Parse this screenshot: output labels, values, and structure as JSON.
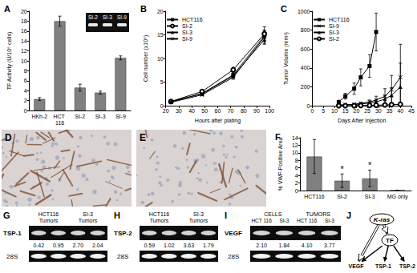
{
  "chart_data": [
    {
      "title": "A",
      "type": "bar",
      "categories": [
        "HKh-2",
        "HCT 116",
        "SI-2",
        "SI-3",
        "SI-9"
      ],
      "values": [
        2.3,
        18,
        4.6,
        3.6,
        10.6
      ],
      "errors": [
        0.3,
        1,
        0.7,
        0.3,
        0.4
      ],
      "color": "#808080",
      "ylabel": "TF Activity (U/10⁶ cells)",
      "ylim": [
        0,
        20
      ],
      "yticks": [
        0,
        2,
        4,
        6,
        8,
        10,
        12,
        14,
        16,
        18,
        20
      ],
      "grid": false,
      "inset": {
        "labels": [
          "SI-2",
          "SI-3",
          "SI-9"
        ]
      }
    },
    {
      "title": "B",
      "type": "line",
      "xlabel": "Hours after plating",
      "ylabel": "Cell number (x10⁵)",
      "x": [
        24,
        48,
        72,
        96
      ],
      "xlim": [
        20,
        100
      ],
      "xticks": [
        20,
        30,
        40,
        50,
        60,
        70,
        80,
        90,
        100
      ],
      "ylim": [
        0,
        20
      ],
      "yticks": [
        0,
        5,
        10,
        15,
        20
      ],
      "grid": false,
      "legend": "upper left",
      "series": [
        {
          "name": "HCT116",
          "color": "#000000",
          "marker": "square",
          "values": [
            0.8,
            2.6,
            6.5,
            14.8
          ],
          "errors": [
            0.1,
            0.2,
            0.4,
            1.2
          ]
        },
        {
          "name": "SI-2",
          "color": "#000000",
          "marker": "open_circle",
          "values": [
            0.9,
            3.0,
            7.6,
            15.2
          ],
          "errors": [
            0.1,
            0.2,
            0.5,
            1.5
          ]
        },
        {
          "name": "SI-3",
          "color": "#000000",
          "marker": "triangle",
          "values": [
            0.9,
            2.5,
            6.3,
            14.0
          ],
          "errors": [
            0.1,
            0.2,
            0.4,
            1.0
          ]
        },
        {
          "name": "SI-9",
          "color": "#000000",
          "marker": "x",
          "values": [
            0.7,
            2.3,
            6.0,
            14.5
          ],
          "errors": [
            0.1,
            0.2,
            0.4,
            1.3
          ]
        }
      ]
    },
    {
      "title": "C",
      "type": "line",
      "xlabel": "Days After Injection",
      "ylabel": "Tumor Volume (mm³)",
      "x": [
        12,
        15,
        19,
        22,
        26,
        29,
        33,
        36,
        40
      ],
      "xlim": [
        0,
        45
      ],
      "xticks": [
        0,
        5,
        10,
        15,
        20,
        25,
        30,
        35,
        40,
        45
      ],
      "ylim": [
        0,
        1000
      ],
      "yticks": [
        0,
        200,
        400,
        600,
        800,
        1000
      ],
      "grid": false,
      "legend": "upper left",
      "series": [
        {
          "name": "HCT116",
          "color": "#000000",
          "marker": "square",
          "values": [
            40,
            100,
            180,
            300,
            420,
            780,
            null,
            null,
            null
          ],
          "errors": [
            10,
            30,
            60,
            90,
            120,
            200,
            null,
            null,
            null
          ]
        },
        {
          "name": "SI-9",
          "color": "#000000",
          "marker": "x",
          "values": [
            5,
            10,
            15,
            25,
            40,
            60,
            100,
            170,
            300
          ],
          "errors": [
            2,
            4,
            6,
            10,
            20,
            40,
            80,
            150,
            350
          ]
        },
        {
          "name": "SI-3",
          "color": "#000000",
          "marker": "triangle",
          "values": [
            5,
            8,
            12,
            18,
            28,
            40,
            70,
            110,
            200
          ],
          "errors": [
            2,
            3,
            5,
            8,
            12,
            20,
            40,
            80,
            250
          ]
        },
        {
          "name": "SI-2",
          "color": "#000000",
          "marker": "open_circle",
          "values": [
            0,
            0,
            0,
            2,
            3,
            5,
            8,
            10,
            15
          ],
          "errors": [
            0,
            0,
            0,
            1,
            1,
            2,
            3,
            4,
            6
          ]
        }
      ]
    },
    {
      "title": "F",
      "type": "bar",
      "categories": [
        "HCT116",
        "SI-2",
        "SI-3",
        "MG only"
      ],
      "values": [
        9,
        2.6,
        3.2,
        0.1
      ],
      "errors": [
        4.5,
        1.8,
        2.2,
        0
      ],
      "color": "#808080",
      "ylabel": "% VWF-Positive Area",
      "ylim": [
        0,
        14
      ],
      "yticks": [
        0,
        2,
        4,
        6,
        8,
        10,
        12,
        14
      ],
      "grid": false,
      "annotations": [
        {
          "category": "SI-2",
          "text": "*"
        },
        {
          "category": "SI-3",
          "text": "*"
        }
      ]
    }
  ],
  "micrographs": [
    {
      "label": "D"
    },
    {
      "label": "E"
    }
  ],
  "gels": [
    {
      "label": "G",
      "target": "TSP-1",
      "groups": [
        {
          "lines": [
            "HCT116",
            "Tumors"
          ]
        },
        {
          "lines": [
            "SI-3",
            "Tumors"
          ]
        }
      ],
      "values": [
        "0.42",
        "0.95",
        "2.70",
        "2.04"
      ],
      "control": "28S"
    },
    {
      "label": "H",
      "target": "TSP-2",
      "groups": [
        {
          "lines": [
            "HCT116",
            "Tumors"
          ]
        },
        {
          "lines": [
            "SI-3",
            "Tumors"
          ]
        }
      ],
      "values": [
        "0.59",
        "1.02",
        "3.63",
        "1.79"
      ],
      "control": "28S"
    },
    {
      "label": "I",
      "target": "VEGF",
      "groups": [
        {
          "lines": [
            "CELLS"
          ],
          "lanes": [
            "HCT 116",
            "SI-3"
          ]
        },
        {
          "lines": [
            "TUMORS"
          ],
          "lanes": [
            "HCT 116",
            "SI-3"
          ]
        }
      ],
      "values": [
        "2.10",
        "1.84",
        "4.10",
        "3.77"
      ],
      "control": "28S"
    }
  ],
  "diagram": {
    "label": "J",
    "nodes": [
      {
        "label": "K-ras"
      },
      {
        "label": "TF"
      },
      {
        "label": "VEGF"
      },
      {
        "label": "TSP-1"
      },
      {
        "label": "TSP-2"
      }
    ],
    "edges": [
      {
        "from": 0,
        "to": 2,
        "style": "open"
      },
      {
        "from": 0,
        "to": 1,
        "style": "open"
      },
      {
        "from": 1,
        "to": 2,
        "style": "solid"
      },
      {
        "from": 1,
        "to": 3,
        "style": "solid"
      },
      {
        "from": 1,
        "to": 4,
        "style": "solid"
      }
    ]
  }
}
